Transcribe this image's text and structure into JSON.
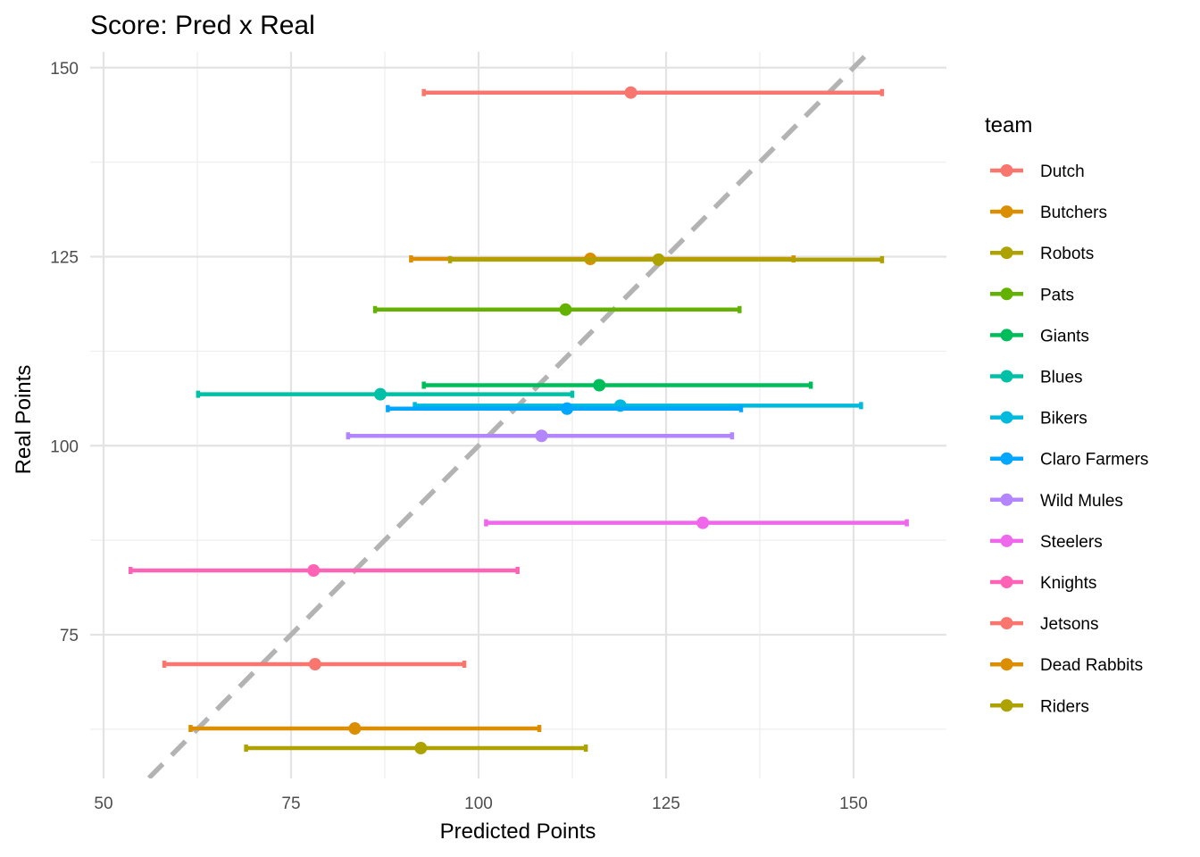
{
  "chart_data": {
    "type": "scatter",
    "title": "Score: Pred x Real",
    "xlabel": "Predicted Points",
    "ylabel": "Real Points",
    "xlim": [
      47,
      163
    ],
    "ylim": [
      56,
      152
    ],
    "x_ticks": [
      50,
      75,
      100,
      125,
      150
    ],
    "y_ticks": [
      75,
      100,
      125,
      150
    ],
    "grid": true,
    "reference_line": {
      "style": "dashed",
      "color": "#b3b3b3",
      "slope": 1,
      "intercept": 0
    },
    "legend": {
      "title": "team",
      "position": "right"
    },
    "series": [
      {
        "name": "Dutch",
        "color": "#F8766D",
        "x": 120.3,
        "y": 146.7,
        "x_min": 92.7,
        "x_max": 153.8
      },
      {
        "name": "Butchers",
        "color": "#DB8E00",
        "x": 114.9,
        "y": 124.7,
        "x_min": 91.0,
        "x_max": 142.0
      },
      {
        "name": "Robots",
        "color": "#AEA200",
        "x": 124.0,
        "y": 124.6,
        "x_min": 96.2,
        "x_max": 153.8
      },
      {
        "name": "Pats",
        "color": "#64B200",
        "x": 111.6,
        "y": 118.0,
        "x_min": 86.2,
        "x_max": 134.8
      },
      {
        "name": "Giants",
        "color": "#00BD5C",
        "x": 116.1,
        "y": 108.0,
        "x_min": 92.7,
        "x_max": 144.3
      },
      {
        "name": "Blues",
        "color": "#00C1A7",
        "x": 86.9,
        "y": 106.8,
        "x_min": 62.6,
        "x_max": 112.5
      },
      {
        "name": "Bikers",
        "color": "#00BADE",
        "x": 118.9,
        "y": 105.3,
        "x_min": 91.5,
        "x_max": 151.0
      },
      {
        "name": "Claro Farmers",
        "color": "#00A6FF",
        "x": 111.8,
        "y": 104.9,
        "x_min": 87.9,
        "x_max": 135.0
      },
      {
        "name": "Wild Mules",
        "color": "#B385FF",
        "x": 108.4,
        "y": 101.3,
        "x_min": 82.6,
        "x_max": 133.8
      },
      {
        "name": "Steelers",
        "color": "#EF67EB",
        "x": 129.9,
        "y": 89.8,
        "x_min": 101.0,
        "x_max": 157.1
      },
      {
        "name": "Knights",
        "color": "#FF63B6",
        "x": 78.0,
        "y": 83.5,
        "x_min": 53.6,
        "x_max": 105.2
      },
      {
        "name": "Jetsons",
        "color": "#F8766D",
        "x": 78.2,
        "y": 71.1,
        "x_min": 58.1,
        "x_max": 98.1
      },
      {
        "name": "Dead Rabbits",
        "color": "#DB8E00",
        "x": 83.5,
        "y": 62.6,
        "x_min": 61.6,
        "x_max": 108.1
      },
      {
        "name": "Riders",
        "color": "#AEA200",
        "x": 92.3,
        "y": 60.0,
        "x_min": 69.0,
        "x_max": 114.3
      }
    ],
    "legend_colors": [
      "#F8766D",
      "#DB8E00",
      "#AEA200",
      "#64B200",
      "#00BD5C",
      "#00C1A7",
      "#00BADE",
      "#00A6FF",
      "#B385FF",
      "#EF67EB",
      "#FF63B6",
      "#F8766D",
      "#DB8E00",
      "#AEA200"
    ]
  }
}
